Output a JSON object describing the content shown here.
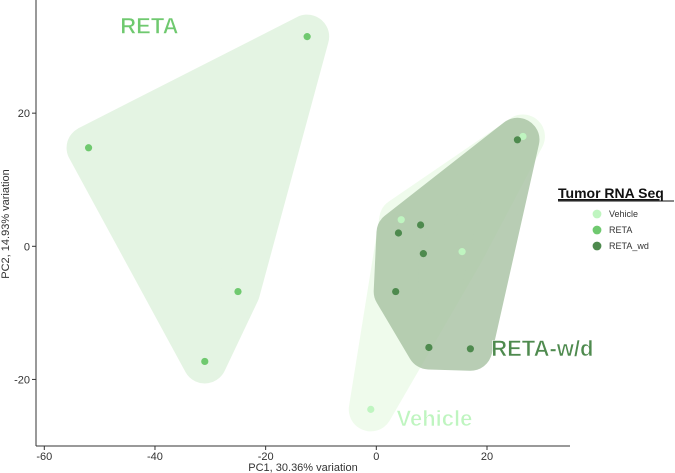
{
  "chart_data": {
    "type": "scatter",
    "xlabel": "PC1, 30.36% variation",
    "ylabel": "PC2, 14.93% variation",
    "xlim": [
      -61.5,
      35
    ],
    "ylim": [
      -30,
      37
    ],
    "xticks": [
      -60,
      -40,
      -20,
      0,
      20
    ],
    "yticks": [
      -20,
      0,
      20
    ],
    "legend": {
      "title": "Tumor RNA Seq",
      "position": "right",
      "entries": [
        {
          "name": "Vehicle",
          "color": "#bff5c0"
        },
        {
          "name": "RETA",
          "color": "#6fc96f"
        },
        {
          "name": "RETA_wd",
          "color": "#4e8a4e"
        }
      ]
    },
    "series": [
      {
        "name": "RETA",
        "color": "#6fc96f",
        "hull_color": "#dff2dd",
        "points": [
          [
            -52,
            14.8
          ],
          [
            -12.5,
            31.5
          ],
          [
            -25,
            -6.8
          ],
          [
            -31,
            -17.3
          ]
        ]
      },
      {
        "name": "Vehicle",
        "color": "#bff5c0",
        "hull_color": "#ecfbe8",
        "points": [
          [
            -1,
            -24.5
          ],
          [
            4.5,
            4
          ],
          [
            15.5,
            -0.8
          ],
          [
            26.5,
            16.5
          ]
        ]
      },
      {
        "name": "RETA_wd",
        "color": "#4e8a4e",
        "hull_color": "#a9c3a4",
        "points": [
          [
            25.5,
            16
          ],
          [
            8,
            3.2
          ],
          [
            4,
            2
          ],
          [
            8.5,
            -1.1
          ],
          [
            3.5,
            -6.8
          ],
          [
            9.5,
            -15.2
          ],
          [
            17,
            -15.4
          ]
        ]
      }
    ],
    "annotations": [
      {
        "text": "RETA",
        "series": "RETA",
        "x": -41,
        "y": 32
      },
      {
        "text": "Vehicle",
        "series": "Vehicle",
        "x": 10.5,
        "y": -27
      },
      {
        "text": "RETA-w/d",
        "series": "RETA_wd",
        "x": 30,
        "y": -16.5
      }
    ]
  }
}
